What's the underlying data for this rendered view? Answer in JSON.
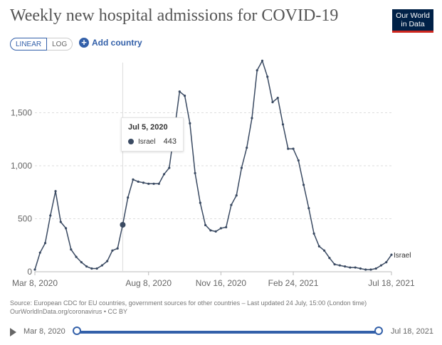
{
  "header": {
    "title": "Weekly new hospital admissions for COVID-19",
    "logo_line1": "Our World",
    "logo_line2": "in Data"
  },
  "controls": {
    "linear_label": "LINEAR",
    "log_label": "LOG",
    "add_country_label": "Add country"
  },
  "tooltip": {
    "date": "Jul 5, 2020",
    "series": "Israel",
    "value": "443"
  },
  "footer": {
    "source": "Source: European CDC for EU countries, government sources for other countries – Last updated 24 July, 15:00 (London time)",
    "url": "OurWorldInData.org/coronavirus • CC BY"
  },
  "timeline": {
    "start_label": "Mar 8, 2020",
    "end_label": "Jul 18, 2021"
  },
  "colors": {
    "line": "#3a4a62",
    "accent": "#3360a9",
    "grid": "#dddddd"
  },
  "chart_data": {
    "type": "line",
    "x_axis_type": "weekly dates (Mar 8, 2020 – Jul 18, 2021)",
    "x_start": "2020-03-08",
    "x_step_days": 7,
    "x_ticks": [
      "Mar 8, 2020",
      "Aug 8, 2020",
      "Nov 16, 2020",
      "Feb 24, 2021",
      "Jul 18, 2021"
    ],
    "y_ticks": [
      "0",
      "500",
      "1,000",
      "1,500"
    ],
    "ylim": [
      0,
      2000
    ],
    "grid": "horizontal dashed",
    "hover_index": 17,
    "series": [
      {
        "name": "Israel",
        "end_label": "Israel",
        "values": [
          20,
          180,
          270,
          530,
          760,
          470,
          410,
          210,
          140,
          90,
          50,
          30,
          30,
          60,
          100,
          200,
          220,
          443,
          700,
          870,
          850,
          840,
          830,
          830,
          830,
          920,
          980,
          1330,
          1700,
          1660,
          1400,
          930,
          650,
          440,
          390,
          380,
          410,
          420,
          630,
          720,
          980,
          1170,
          1450,
          1900,
          1990,
          1840,
          1600,
          1640,
          1390,
          1160,
          1160,
          1050,
          820,
          600,
          360,
          240,
          200,
          130,
          70,
          60,
          50,
          40,
          40,
          30,
          20,
          20,
          30,
          60,
          90,
          160
        ]
      }
    ]
  }
}
